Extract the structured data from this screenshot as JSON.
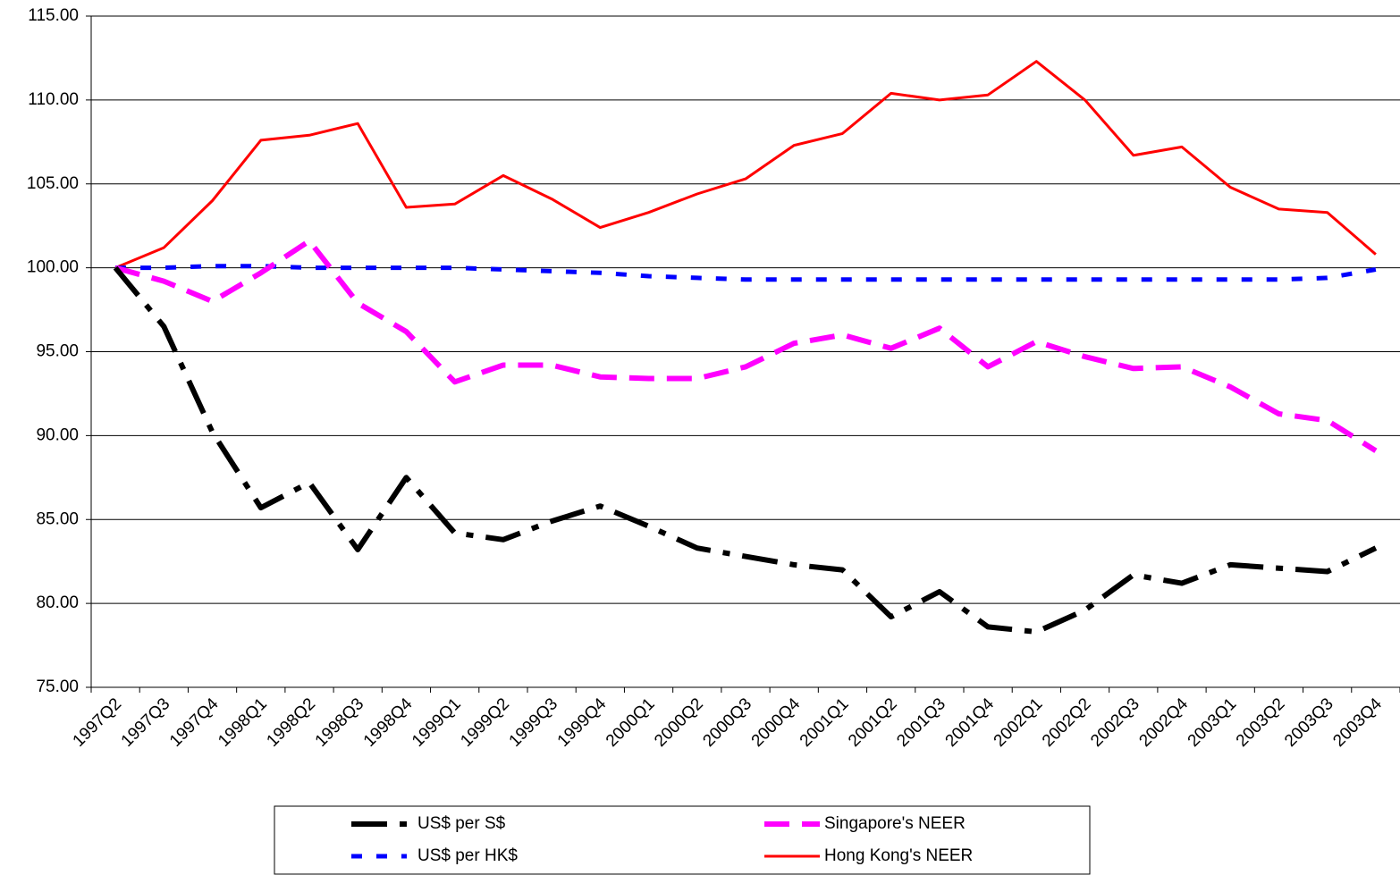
{
  "chart_data": {
    "type": "line",
    "categories": [
      "1997Q2",
      "1997Q3",
      "1997Q4",
      "1998Q1",
      "1998Q2",
      "1998Q3",
      "1998Q4",
      "1999Q1",
      "1999Q2",
      "1999Q3",
      "1999Q4",
      "2000Q1",
      "2000Q2",
      "2000Q3",
      "2000Q4",
      "2001Q1",
      "2001Q2",
      "2001Q3",
      "2001Q4",
      "2002Q1",
      "2002Q2",
      "2002Q3",
      "2002Q4",
      "2003Q1",
      "2003Q2",
      "2003Q3",
      "2003Q4"
    ],
    "series": [
      {
        "name": "US$ per S$",
        "color": "#000000",
        "values": [
          100,
          96.5,
          90.2,
          85.7,
          87.2,
          83.2,
          87.5,
          84.2,
          83.8,
          84.9,
          85.8,
          84.6,
          83.3,
          82.8,
          82.3,
          82,
          79.2,
          80.7,
          78.6,
          78.3,
          79.6,
          81.7,
          81.2,
          82.3,
          82.1,
          81.9,
          83.3
        ]
      },
      {
        "name": "Singapore's NEER",
        "color": "#ff00ff",
        "values": [
          100,
          99.2,
          98,
          99.7,
          101.6,
          97.9,
          96.2,
          93.2,
          94.2,
          94.2,
          93.5,
          93.4,
          93.4,
          94.1,
          95.5,
          96,
          95.2,
          96.4,
          94.1,
          95.6,
          94.7,
          94,
          94.1,
          92.9,
          91.3,
          90.9,
          89.1
        ]
      },
      {
        "name": "US$ per HK$",
        "color": "#0000ff",
        "values": [
          100,
          100,
          100.1,
          100.1,
          100,
          100,
          100,
          100,
          99.9,
          99.8,
          99.7,
          99.5,
          99.4,
          99.3,
          99.3,
          99.3,
          99.3,
          99.3,
          99.3,
          99.3,
          99.3,
          99.3,
          99.3,
          99.3,
          99.3,
          99.4,
          99.9
        ]
      },
      {
        "name": "Hong Kong's NEER",
        "color": "#ff0000",
        "values": [
          100,
          101.2,
          104,
          107.6,
          107.9,
          108.6,
          103.6,
          103.8,
          105.5,
          104.1,
          102.4,
          103.3,
          104.4,
          105.3,
          107.3,
          108,
          110.4,
          110,
          110.3,
          112.3,
          110,
          106.7,
          107.2,
          104.8,
          103.5,
          103.3,
          100.8
        ]
      }
    ],
    "ylim": [
      75,
      115
    ],
    "yticks": [
      {
        "value": 75,
        "label": "75.00"
      },
      {
        "value": 80,
        "label": "80.00"
      },
      {
        "value": 85,
        "label": "85.00"
      },
      {
        "value": 90,
        "label": "90.00"
      },
      {
        "value": 95,
        "label": "95.00"
      },
      {
        "value": 100,
        "label": "100.00"
      },
      {
        "value": 105,
        "label": "105.00"
      },
      {
        "value": 110,
        "label": "110.00"
      },
      {
        "value": 115,
        "label": "115.00"
      }
    ],
    "grid": true,
    "legend": "bottom"
  }
}
